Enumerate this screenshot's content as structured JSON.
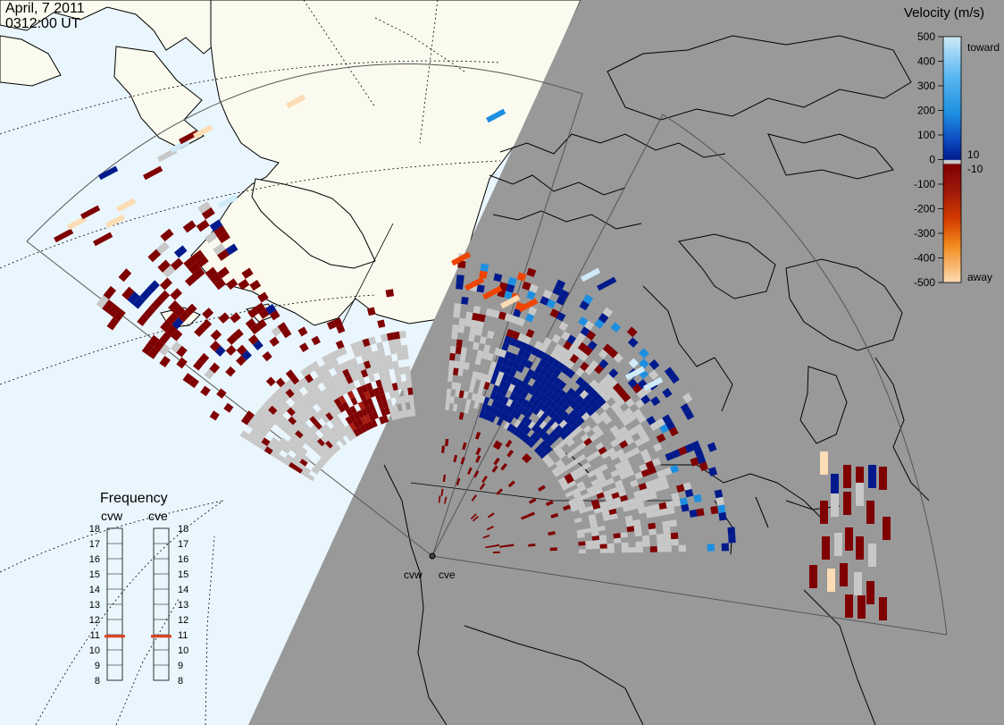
{
  "header": {
    "date": "April, 7 2011",
    "time": "0312:00 UT"
  },
  "velocity_legend": {
    "title": "Velocity (m/s)",
    "ticks": [
      "500",
      "400",
      "300",
      "200",
      "100",
      "0",
      "-100",
      "-200",
      "-300",
      "-400",
      "-500"
    ],
    "inner_ticks": [
      "10",
      "-10"
    ],
    "toward_label": "toward",
    "away_label": "away",
    "colors": {
      "toward_top": "#cfeaf9",
      "toward_mid": "#1e8fe0",
      "toward_low": "#001a8c",
      "ground_scatter": "#c8c8c8",
      "away_low": "#7f0000",
      "away_mid": "#ee4400",
      "away_top": "#fcdcb4"
    }
  },
  "frequency_panel": {
    "title": "Frequency",
    "radar_labels": [
      "cvw",
      "cve"
    ],
    "scale": [
      "18",
      "17",
      "16",
      "15",
      "14",
      "13",
      "12",
      "11",
      "10",
      "9",
      "8"
    ],
    "cvw_mhz": 10.9,
    "cve_mhz": 10.9,
    "marker_color": "#e0401c"
  },
  "radar_sites": [
    "cvw",
    "cve"
  ],
  "map_colors": {
    "ocean_day": "#eaf6fd",
    "land_day": "#fbfaee",
    "night_shade": "#999999"
  }
}
